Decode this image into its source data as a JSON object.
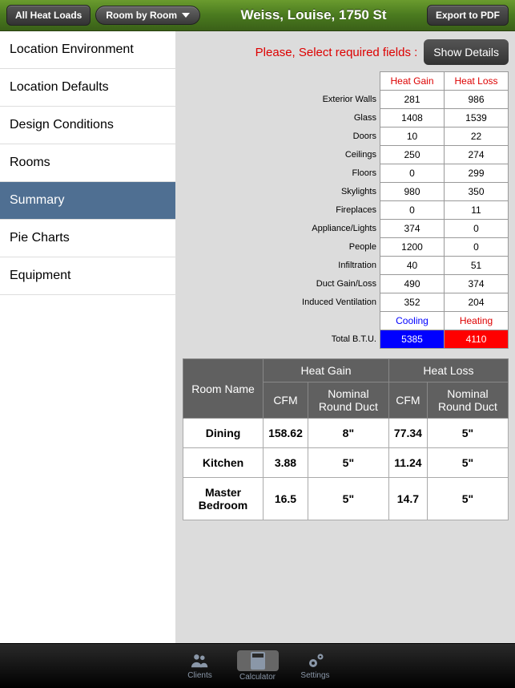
{
  "topbar": {
    "back_label": "All Heat Loads",
    "dropdown_label": "Room by Room",
    "title": "Weiss, Louise, 1750 St",
    "export_label": "Export to PDF"
  },
  "sidebar": {
    "items": [
      {
        "label": "Location Environment"
      },
      {
        "label": "Location Defaults"
      },
      {
        "label": "Design Conditions"
      },
      {
        "label": "Rooms"
      },
      {
        "label": "Summary"
      },
      {
        "label": "Pie Charts"
      },
      {
        "label": "Equipment"
      }
    ],
    "active_index": 4
  },
  "alert": {
    "text": "Please, Select required fields :",
    "button": "Show Details"
  },
  "heat_table": {
    "headers": {
      "gain": "Heat Gain",
      "loss": "Heat Loss"
    },
    "rows": [
      {
        "label": "Exterior Walls",
        "gain": "281",
        "loss": "986"
      },
      {
        "label": "Glass",
        "gain": "1408",
        "loss": "1539"
      },
      {
        "label": "Doors",
        "gain": "10",
        "loss": "22"
      },
      {
        "label": "Ceilings",
        "gain": "250",
        "loss": "274"
      },
      {
        "label": "Floors",
        "gain": "0",
        "loss": "299"
      },
      {
        "label": "Skylights",
        "gain": "980",
        "loss": "350"
      },
      {
        "label": "Fireplaces",
        "gain": "0",
        "loss": "11"
      },
      {
        "label": "Appliance/Lights",
        "gain": "374",
        "loss": "0"
      },
      {
        "label": "People",
        "gain": "1200",
        "loss": "0"
      },
      {
        "label": "Infiltration",
        "gain": "40",
        "loss": "51"
      },
      {
        "label": "Duct Gain/Loss",
        "gain": "490",
        "loss": "374"
      },
      {
        "label": "Induced Ventilation",
        "gain": "352",
        "loss": "204"
      }
    ],
    "summary_labels": {
      "cooling": "Cooling",
      "heating": "Heating"
    },
    "total": {
      "label": "Total B.T.U.",
      "gain": "5385",
      "loss": "4110"
    }
  },
  "room_table": {
    "group_headers": {
      "gain": "Heat Gain",
      "loss": "Heat Loss"
    },
    "col_headers": {
      "room": "Room Name",
      "cfm": "CFM",
      "duct": "Nominal Round Duct"
    },
    "rows": [
      {
        "name": "Dining",
        "gain_cfm": "158.62",
        "gain_duct": "8\"",
        "loss_cfm": "77.34",
        "loss_duct": "5\""
      },
      {
        "name": "Kitchen",
        "gain_cfm": "3.88",
        "gain_duct": "5\"",
        "loss_cfm": "11.24",
        "loss_duct": "5\""
      },
      {
        "name": "Master Bedroom",
        "gain_cfm": "16.5",
        "gain_duct": "5\"",
        "loss_cfm": "14.7",
        "loss_duct": "5\""
      }
    ]
  },
  "tabbar": {
    "items": [
      {
        "label": "Clients"
      },
      {
        "label": "Calculator"
      },
      {
        "label": "Settings"
      }
    ],
    "active_index": 1
  }
}
